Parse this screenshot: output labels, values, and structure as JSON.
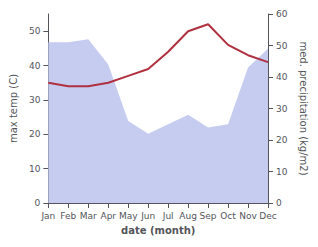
{
  "chart_data": {
    "type": "line",
    "categories": [
      "Jan",
      "Feb",
      "Mar",
      "Apr",
      "May",
      "Jun",
      "Jul",
      "Aug",
      "Sep",
      "Oct",
      "Nov",
      "Dec"
    ],
    "series": [
      {
        "type": "area",
        "color": "#c5ccf0",
        "axis": "y2",
        "values": [
          51,
          51,
          52,
          44,
          26,
          22,
          25,
          28,
          24,
          25,
          43,
          49
        ]
      },
      {
        "type": "line",
        "color": "#b03040",
        "values": [
          35,
          34,
          34,
          35,
          37,
          39,
          44,
          50,
          52,
          46,
          43,
          41
        ]
      }
    ],
    "xlabel": "date (month)",
    "ylabel": "max temp (C)",
    "y2label": "med. precipitation (kg/m2)",
    "ylim": [
      0,
      55
    ],
    "yticks": [
      0,
      10,
      20,
      30,
      40,
      50
    ],
    "y2lim": [
      0,
      60
    ],
    "y2ticks": [
      0,
      10,
      20,
      30,
      40,
      50,
      60
    ],
    "grid": false
  }
}
